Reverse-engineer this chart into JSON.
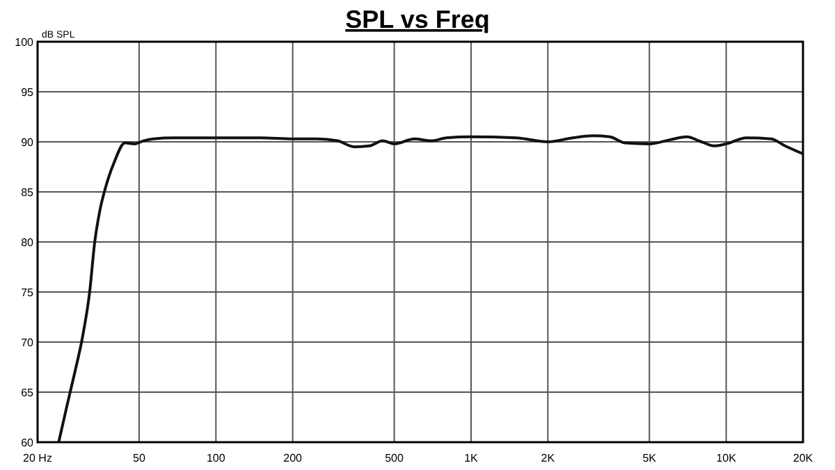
{
  "chart_data": {
    "type": "line",
    "title": "SPL vs Freq",
    "ylabel": "dB SPL",
    "log": "x",
    "grid": true,
    "line_style": "solid",
    "marker": "none",
    "xlim": [
      20,
      20000
    ],
    "ylim": [
      60,
      100
    ],
    "xticks": [
      {
        "value": 20,
        "label": "20 Hz"
      },
      50,
      100,
      200,
      500,
      {
        "value": 1000,
        "label": "1K"
      },
      {
        "value": 2000,
        "label": "2K"
      },
      {
        "value": 5000,
        "label": "5K"
      },
      {
        "value": 10000,
        "label": "10K"
      },
      {
        "value": 20000,
        "label": "20K"
      }
    ],
    "yticks": [
      60,
      65,
      70,
      75,
      80,
      85,
      90,
      95,
      100
    ],
    "series": [
      {
        "color": "#111111",
        "x": [
          24.2,
          26,
          28,
          30,
          32,
          33.5,
          35,
          37,
          40,
          44,
          48,
          52,
          57,
          68,
          100,
          150,
          200,
          250,
          300,
          350,
          400,
          450,
          500,
          600,
          700,
          800,
          1000,
          1500,
          2000,
          2500,
          3000,
          3500,
          4000,
          5000,
          6000,
          7000,
          8000,
          9000,
          10000,
          12000,
          15000,
          17000,
          20000
        ],
        "values": [
          60,
          63.5,
          67,
          70.5,
          75,
          80,
          83,
          85.5,
          88,
          89.9,
          89.8,
          90.1,
          90.3,
          90.4,
          90.4,
          90.4,
          90.3,
          90.3,
          90.1,
          89.5,
          89.6,
          90.1,
          89.8,
          90.3,
          90.1,
          90.4,
          90.5,
          90.4,
          90,
          90.4,
          90.6,
          90.5,
          89.9,
          89.8,
          90.2,
          90.5,
          90,
          89.6,
          89.8,
          90.4,
          90.3,
          89.6,
          88.8
        ]
      }
    ]
  }
}
